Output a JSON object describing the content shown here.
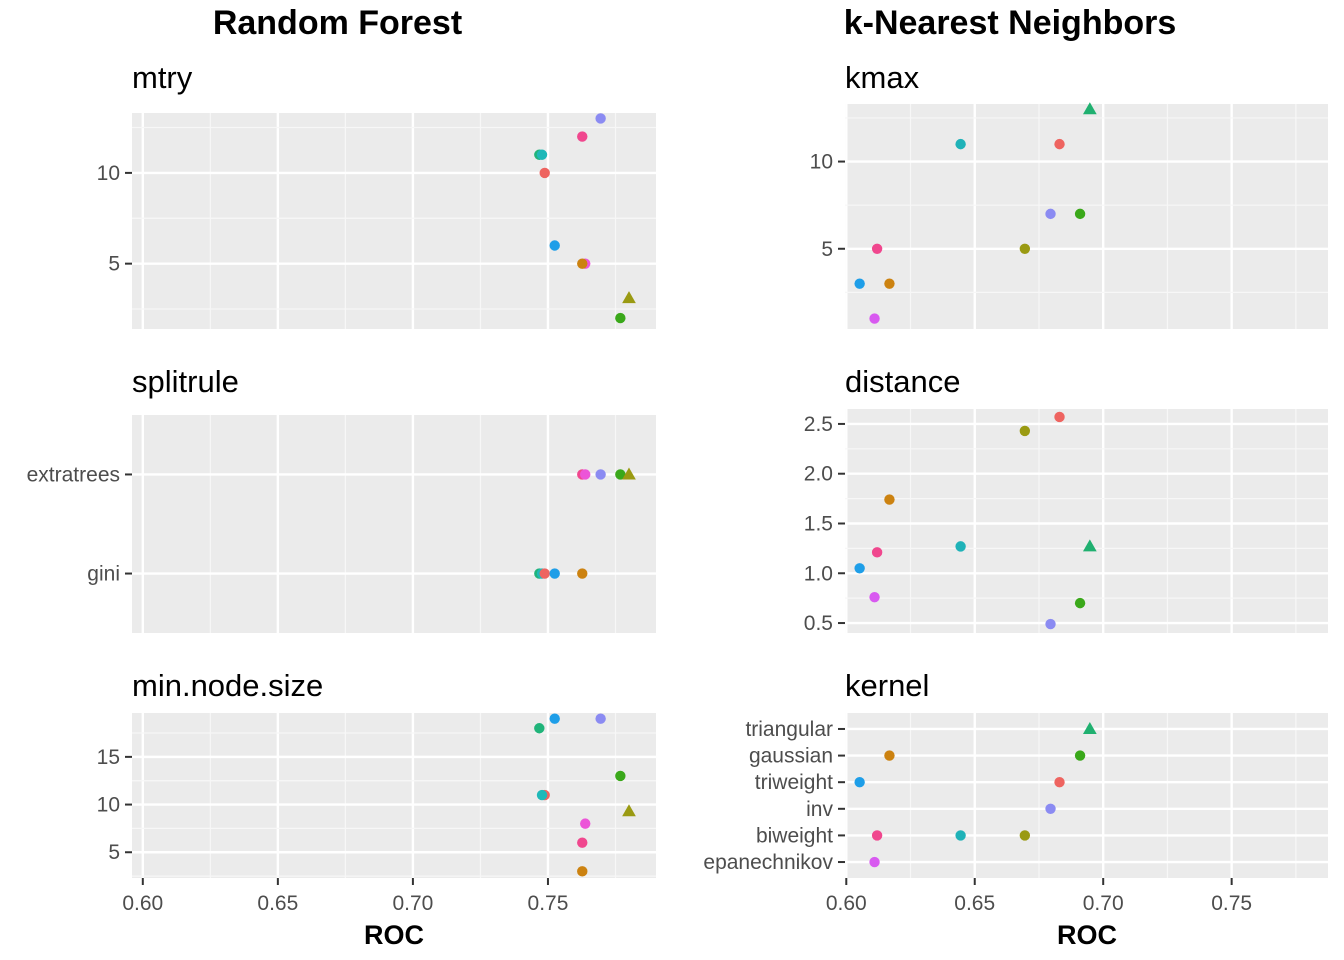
{
  "titles": {
    "rf": "Random Forest",
    "knn": "k-Nearest Neighbors"
  },
  "chart_data": [
    {
      "type": "scatter",
      "group": "Random Forest",
      "xlabel": "ROC",
      "xlim": [
        0.596,
        0.79
      ],
      "xticks": [
        0.6,
        0.65,
        0.7,
        0.75
      ],
      "xtick_labels": [
        "0.60",
        "0.65",
        "0.70",
        "0.75"
      ],
      "grid": true,
      "panels": [
        {
          "title": "mtry",
          "yaxis": "numeric",
          "ylim": [
            1.4,
            13.3
          ],
          "yticks": [
            5,
            10
          ],
          "ytick_labels": [
            "5",
            "10"
          ],
          "points": [
            {
              "x": 0.7695,
              "y": 13,
              "color": "#8B8BF2",
              "shape": "circle"
            },
            {
              "x": 0.7627,
              "y": 12,
              "color": "#F0478E",
              "shape": "circle"
            },
            {
              "x": 0.7468,
              "y": 11,
              "color": "#20B47A",
              "shape": "circle"
            },
            {
              "x": 0.7478,
              "y": 11,
              "color": "#1FB8B8",
              "shape": "circle"
            },
            {
              "x": 0.7488,
              "y": 10,
              "color": "#EE6460",
              "shape": "circle"
            },
            {
              "x": 0.7525,
              "y": 6,
              "color": "#1E9EE8",
              "shape": "circle"
            },
            {
              "x": 0.7638,
              "y": 5,
              "color": "#EC55D8",
              "shape": "circle"
            },
            {
              "x": 0.7627,
              "y": 5,
              "color": "#CC8210",
              "shape": "circle"
            },
            {
              "x": 0.78,
              "y": 3.1,
              "color": "#9A9A12",
              "shape": "triangle"
            },
            {
              "x": 0.7768,
              "y": 2,
              "color": "#3AA81A",
              "shape": "circle"
            }
          ]
        },
        {
          "title": "splitrule",
          "yaxis": "categorical",
          "categories": [
            "extratrees",
            "gini"
          ],
          "points": [
            {
              "x": 0.7627,
              "y": "extratrees",
              "color": "#F0478E",
              "shape": "circle"
            },
            {
              "x": 0.7638,
              "y": "extratrees",
              "color": "#EC55D8",
              "shape": "circle"
            },
            {
              "x": 0.7695,
              "y": "extratrees",
              "color": "#8B8BF2",
              "shape": "circle"
            },
            {
              "x": 0.7768,
              "y": "extratrees",
              "color": "#3AA81A",
              "shape": "circle"
            },
            {
              "x": 0.78,
              "y": "extratrees",
              "color": "#9A9A12",
              "shape": "triangle"
            },
            {
              "x": 0.7468,
              "y": "gini",
              "color": "#20B47A",
              "shape": "circle"
            },
            {
              "x": 0.7478,
              "y": "gini",
              "color": "#1FB8B8",
              "shape": "circle"
            },
            {
              "x": 0.7488,
              "y": "gini",
              "color": "#EE6460",
              "shape": "circle"
            },
            {
              "x": 0.7525,
              "y": "gini",
              "color": "#1E9EE8",
              "shape": "circle"
            },
            {
              "x": 0.7627,
              "y": "gini",
              "color": "#CC8210",
              "shape": "circle"
            }
          ]
        },
        {
          "title": "min.node.size",
          "yaxis": "numeric",
          "ylim": [
            2.3,
            19.6
          ],
          "yticks": [
            5,
            10,
            15
          ],
          "ytick_labels": [
            "5",
            "10",
            "15"
          ],
          "points": [
            {
              "x": 0.7525,
              "y": 19,
              "color": "#1E9EE8",
              "shape": "circle"
            },
            {
              "x": 0.7695,
              "y": 19,
              "color": "#8B8BF2",
              "shape": "circle"
            },
            {
              "x": 0.7468,
              "y": 18,
              "color": "#20B47A",
              "shape": "circle"
            },
            {
              "x": 0.7768,
              "y": 13,
              "color": "#3AA81A",
              "shape": "circle"
            },
            {
              "x": 0.7488,
              "y": 11,
              "color": "#EE6460",
              "shape": "circle"
            },
            {
              "x": 0.7478,
              "y": 11,
              "color": "#1FB8B8",
              "shape": "circle"
            },
            {
              "x": 0.78,
              "y": 9.3,
              "color": "#9A9A12",
              "shape": "triangle"
            },
            {
              "x": 0.7638,
              "y": 8,
              "color": "#EC55D8",
              "shape": "circle"
            },
            {
              "x": 0.7627,
              "y": 6,
              "color": "#F0478E",
              "shape": "circle"
            },
            {
              "x": 0.7627,
              "y": 3,
              "color": "#CC8210",
              "shape": "circle"
            }
          ]
        }
      ]
    },
    {
      "type": "scatter",
      "group": "k-Nearest Neighbors",
      "xlabel": "ROC",
      "xlim": [
        0.5995,
        0.7875
      ],
      "xticks": [
        0.6,
        0.65,
        0.7,
        0.75
      ],
      "xtick_labels": [
        "0.60",
        "0.65",
        "0.70",
        "0.75"
      ],
      "grid": true,
      "panels": [
        {
          "title": "kmax",
          "yaxis": "numeric",
          "ylim": [
            0.4,
            13.3
          ],
          "yticks": [
            5,
            10
          ],
          "ytick_labels": [
            "5",
            "10"
          ],
          "points": [
            {
              "x": 0.6948,
              "y": 13,
              "color": "#20B070",
              "shape": "triangle"
            },
            {
              "x": 0.6445,
              "y": 11,
              "color": "#1FB2B8",
              "shape": "circle"
            },
            {
              "x": 0.683,
              "y": 11,
              "color": "#EE6460",
              "shape": "circle"
            },
            {
              "x": 0.6795,
              "y": 7,
              "color": "#8B8BF2",
              "shape": "circle"
            },
            {
              "x": 0.691,
              "y": 7,
              "color": "#3AA81A",
              "shape": "circle"
            },
            {
              "x": 0.612,
              "y": 5,
              "color": "#F0478E",
              "shape": "circle"
            },
            {
              "x": 0.6695,
              "y": 5,
              "color": "#9A9A12",
              "shape": "circle"
            },
            {
              "x": 0.6052,
              "y": 3,
              "color": "#1E9EE8",
              "shape": "circle"
            },
            {
              "x": 0.6168,
              "y": 3,
              "color": "#CC8210",
              "shape": "circle"
            },
            {
              "x": 0.611,
              "y": 1,
              "color": "#D85AF0",
              "shape": "circle"
            }
          ]
        },
        {
          "title": "distance",
          "yaxis": "numeric",
          "ylim": [
            0.4,
            2.65
          ],
          "yticks": [
            0.5,
            1.0,
            1.5,
            2.0,
            2.5
          ],
          "ytick_labels": [
            "0.5",
            "1.0",
            "1.5",
            "2.0",
            "2.5"
          ],
          "points": [
            {
              "x": 0.683,
              "y": 2.57,
              "color": "#EE6460",
              "shape": "circle"
            },
            {
              "x": 0.6695,
              "y": 2.43,
              "color": "#9A9A12",
              "shape": "circle"
            },
            {
              "x": 0.6168,
              "y": 1.74,
              "color": "#CC8210",
              "shape": "circle"
            },
            {
              "x": 0.6445,
              "y": 1.27,
              "color": "#1FB2B8",
              "shape": "circle"
            },
            {
              "x": 0.6948,
              "y": 1.27,
              "color": "#20B070",
              "shape": "triangle"
            },
            {
              "x": 0.612,
              "y": 1.21,
              "color": "#F0478E",
              "shape": "circle"
            },
            {
              "x": 0.6052,
              "y": 1.05,
              "color": "#1E9EE8",
              "shape": "circle"
            },
            {
              "x": 0.611,
              "y": 0.76,
              "color": "#D85AF0",
              "shape": "circle"
            },
            {
              "x": 0.691,
              "y": 0.7,
              "color": "#3AA81A",
              "shape": "circle"
            },
            {
              "x": 0.6795,
              "y": 0.49,
              "color": "#8B8BF2",
              "shape": "circle"
            }
          ]
        },
        {
          "title": "kernel",
          "yaxis": "categorical",
          "categories": [
            "triangular",
            "gaussian",
            "triweight",
            "inv",
            "biweight",
            "epanechnikov"
          ],
          "points": [
            {
              "x": 0.6948,
              "y": "triangular",
              "color": "#20B070",
              "shape": "triangle"
            },
            {
              "x": 0.6168,
              "y": "gaussian",
              "color": "#CC8210",
              "shape": "circle"
            },
            {
              "x": 0.691,
              "y": "gaussian",
              "color": "#3AA81A",
              "shape": "circle"
            },
            {
              "x": 0.6052,
              "y": "triweight",
              "color": "#1E9EE8",
              "shape": "circle"
            },
            {
              "x": 0.683,
              "y": "triweight",
              "color": "#EE6460",
              "shape": "circle"
            },
            {
              "x": 0.6795,
              "y": "inv",
              "color": "#8B8BF2",
              "shape": "circle"
            },
            {
              "x": 0.612,
              "y": "biweight",
              "color": "#F0478E",
              "shape": "circle"
            },
            {
              "x": 0.6445,
              "y": "biweight",
              "color": "#1FB2B8",
              "shape": "circle"
            },
            {
              "x": 0.6695,
              "y": "biweight",
              "color": "#9A9A12",
              "shape": "circle"
            },
            {
              "x": 0.611,
              "y": "epanechnikov",
              "color": "#D85AF0",
              "shape": "circle"
            }
          ]
        }
      ]
    }
  ]
}
